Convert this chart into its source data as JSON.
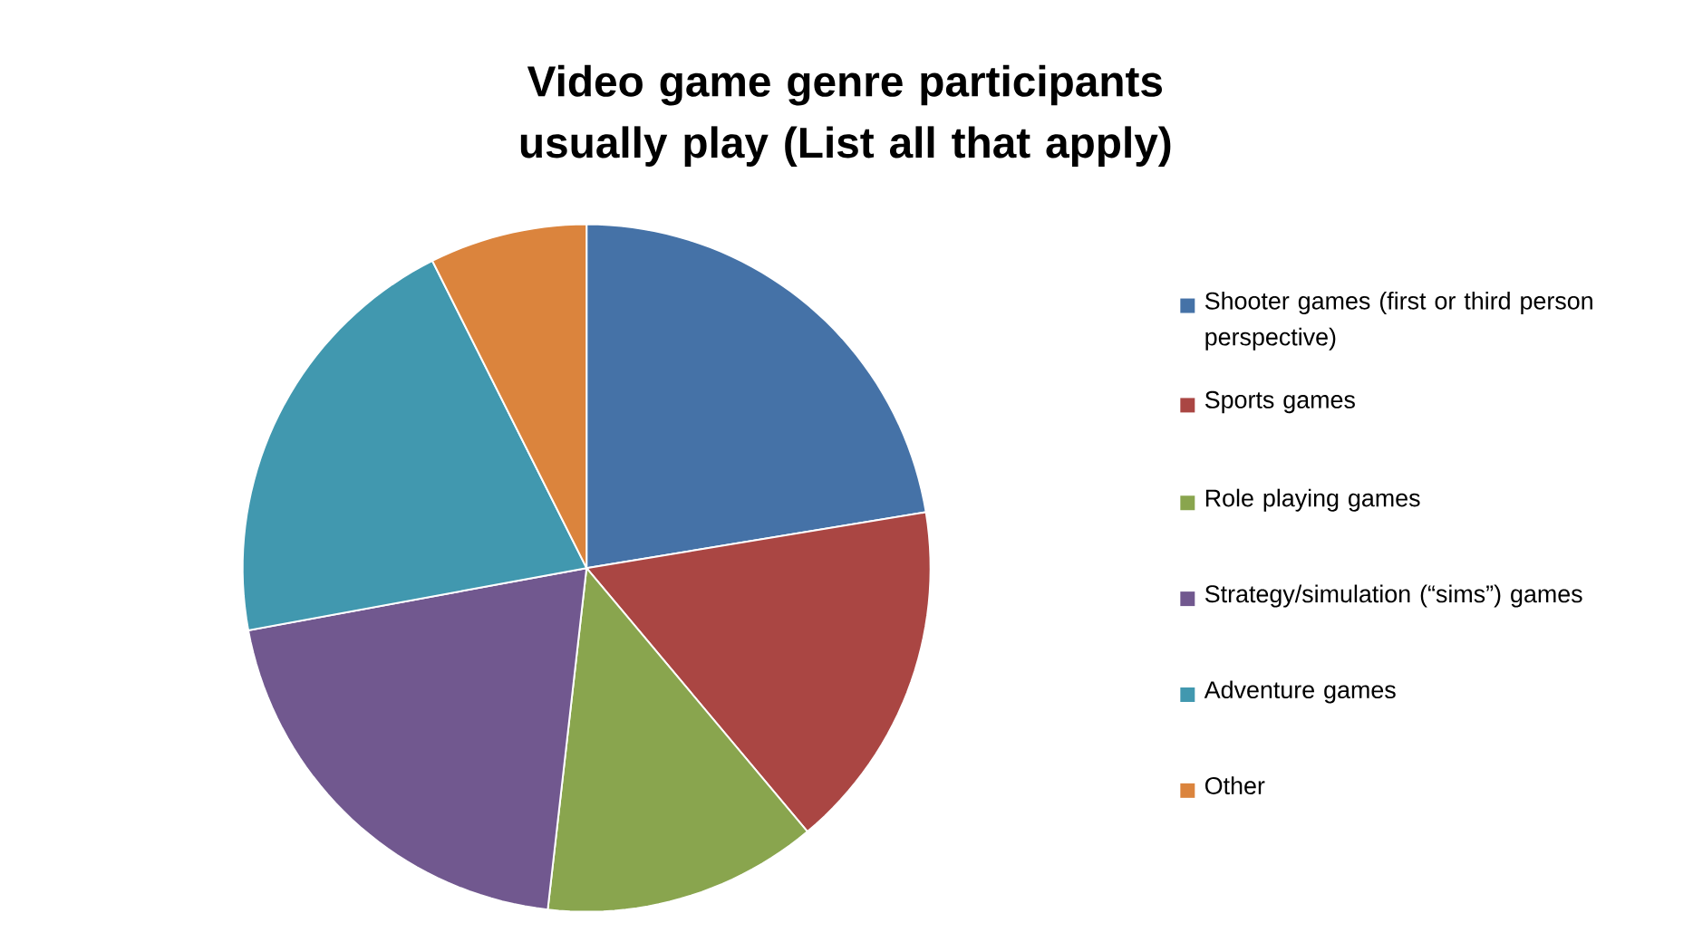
{
  "chart_data": {
    "type": "pie",
    "title": "Video game genre participants usually play (List all that apply)",
    "categories": [
      "Shooter games (first or third person perspective)",
      "Sports games",
      "Role playing games",
      "Strategy/simulation (“sims”) games",
      "Adventure games",
      "Other"
    ],
    "values": [
      22.4,
      16.5,
      12.9,
      20.3,
      20.5,
      7.4
    ],
    "colors": [
      "#4572a7",
      "#aa4643",
      "#89a54e",
      "#71588f",
      "#4198af",
      "#db843d"
    ],
    "legend": "right"
  }
}
